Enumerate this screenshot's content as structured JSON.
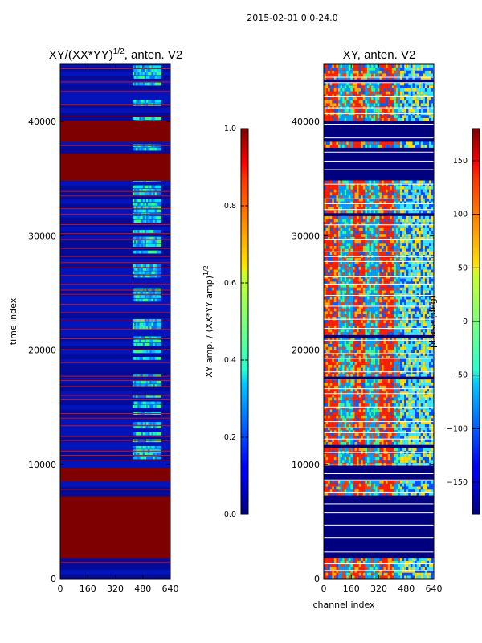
{
  "suptitle": "2015-02-01 0.0-24.0",
  "chart_data": [
    {
      "type": "heatmap",
      "title": "XY/(XX*YY)^{1/2}, anten. V2",
      "title_main": "XY/(XX*YY)",
      "title_sup": "1/2",
      "title_tail": ", anten. V2",
      "xlabel": "",
      "ylabel": "time index",
      "xlim": [
        0,
        640
      ],
      "ylim": [
        0,
        45000
      ],
      "xticks": [
        "0",
        "160",
        "320",
        "480",
        "640"
      ],
      "yticks": [
        "0",
        "10000",
        "20000",
        "30000",
        "40000"
      ],
      "colorbar": {
        "label": "XY amp. / (XX*YY amp)^{1/2}",
        "label_main": "XY amp. / (XX*YY amp)",
        "label_sup": "1/2",
        "range": [
          0.0,
          1.0
        ],
        "ticks": [
          "0.0",
          "0.2",
          "0.4",
          "0.6",
          "0.8",
          "1.0"
        ]
      },
      "saturated_time_ranges": [
        [
          1800,
          7200
        ],
        [
          8500,
          9700
        ],
        [
          34800,
          37200
        ],
        [
          38200,
          40000
        ]
      ]
    },
    {
      "type": "heatmap",
      "title": "XY, anten. V2",
      "xlabel": "channel index",
      "ylabel": "",
      "xlim": [
        0,
        640
      ],
      "ylim": [
        0,
        45000
      ],
      "xticks": [
        "0",
        "160",
        "320",
        "480",
        "640"
      ],
      "yticks": [
        "0",
        "10000",
        "20000",
        "30000",
        "40000"
      ],
      "colorbar": {
        "label": "phase (deg)",
        "range": [
          -180,
          180
        ],
        "ticks": [
          "−150",
          "−100",
          "−50",
          "0",
          "50",
          "100",
          "150"
        ]
      },
      "empty_time_ranges": [
        [
          1800,
          7200
        ],
        [
          8500,
          9700
        ],
        [
          34800,
          37200
        ],
        [
          38200,
          40000
        ]
      ]
    }
  ]
}
